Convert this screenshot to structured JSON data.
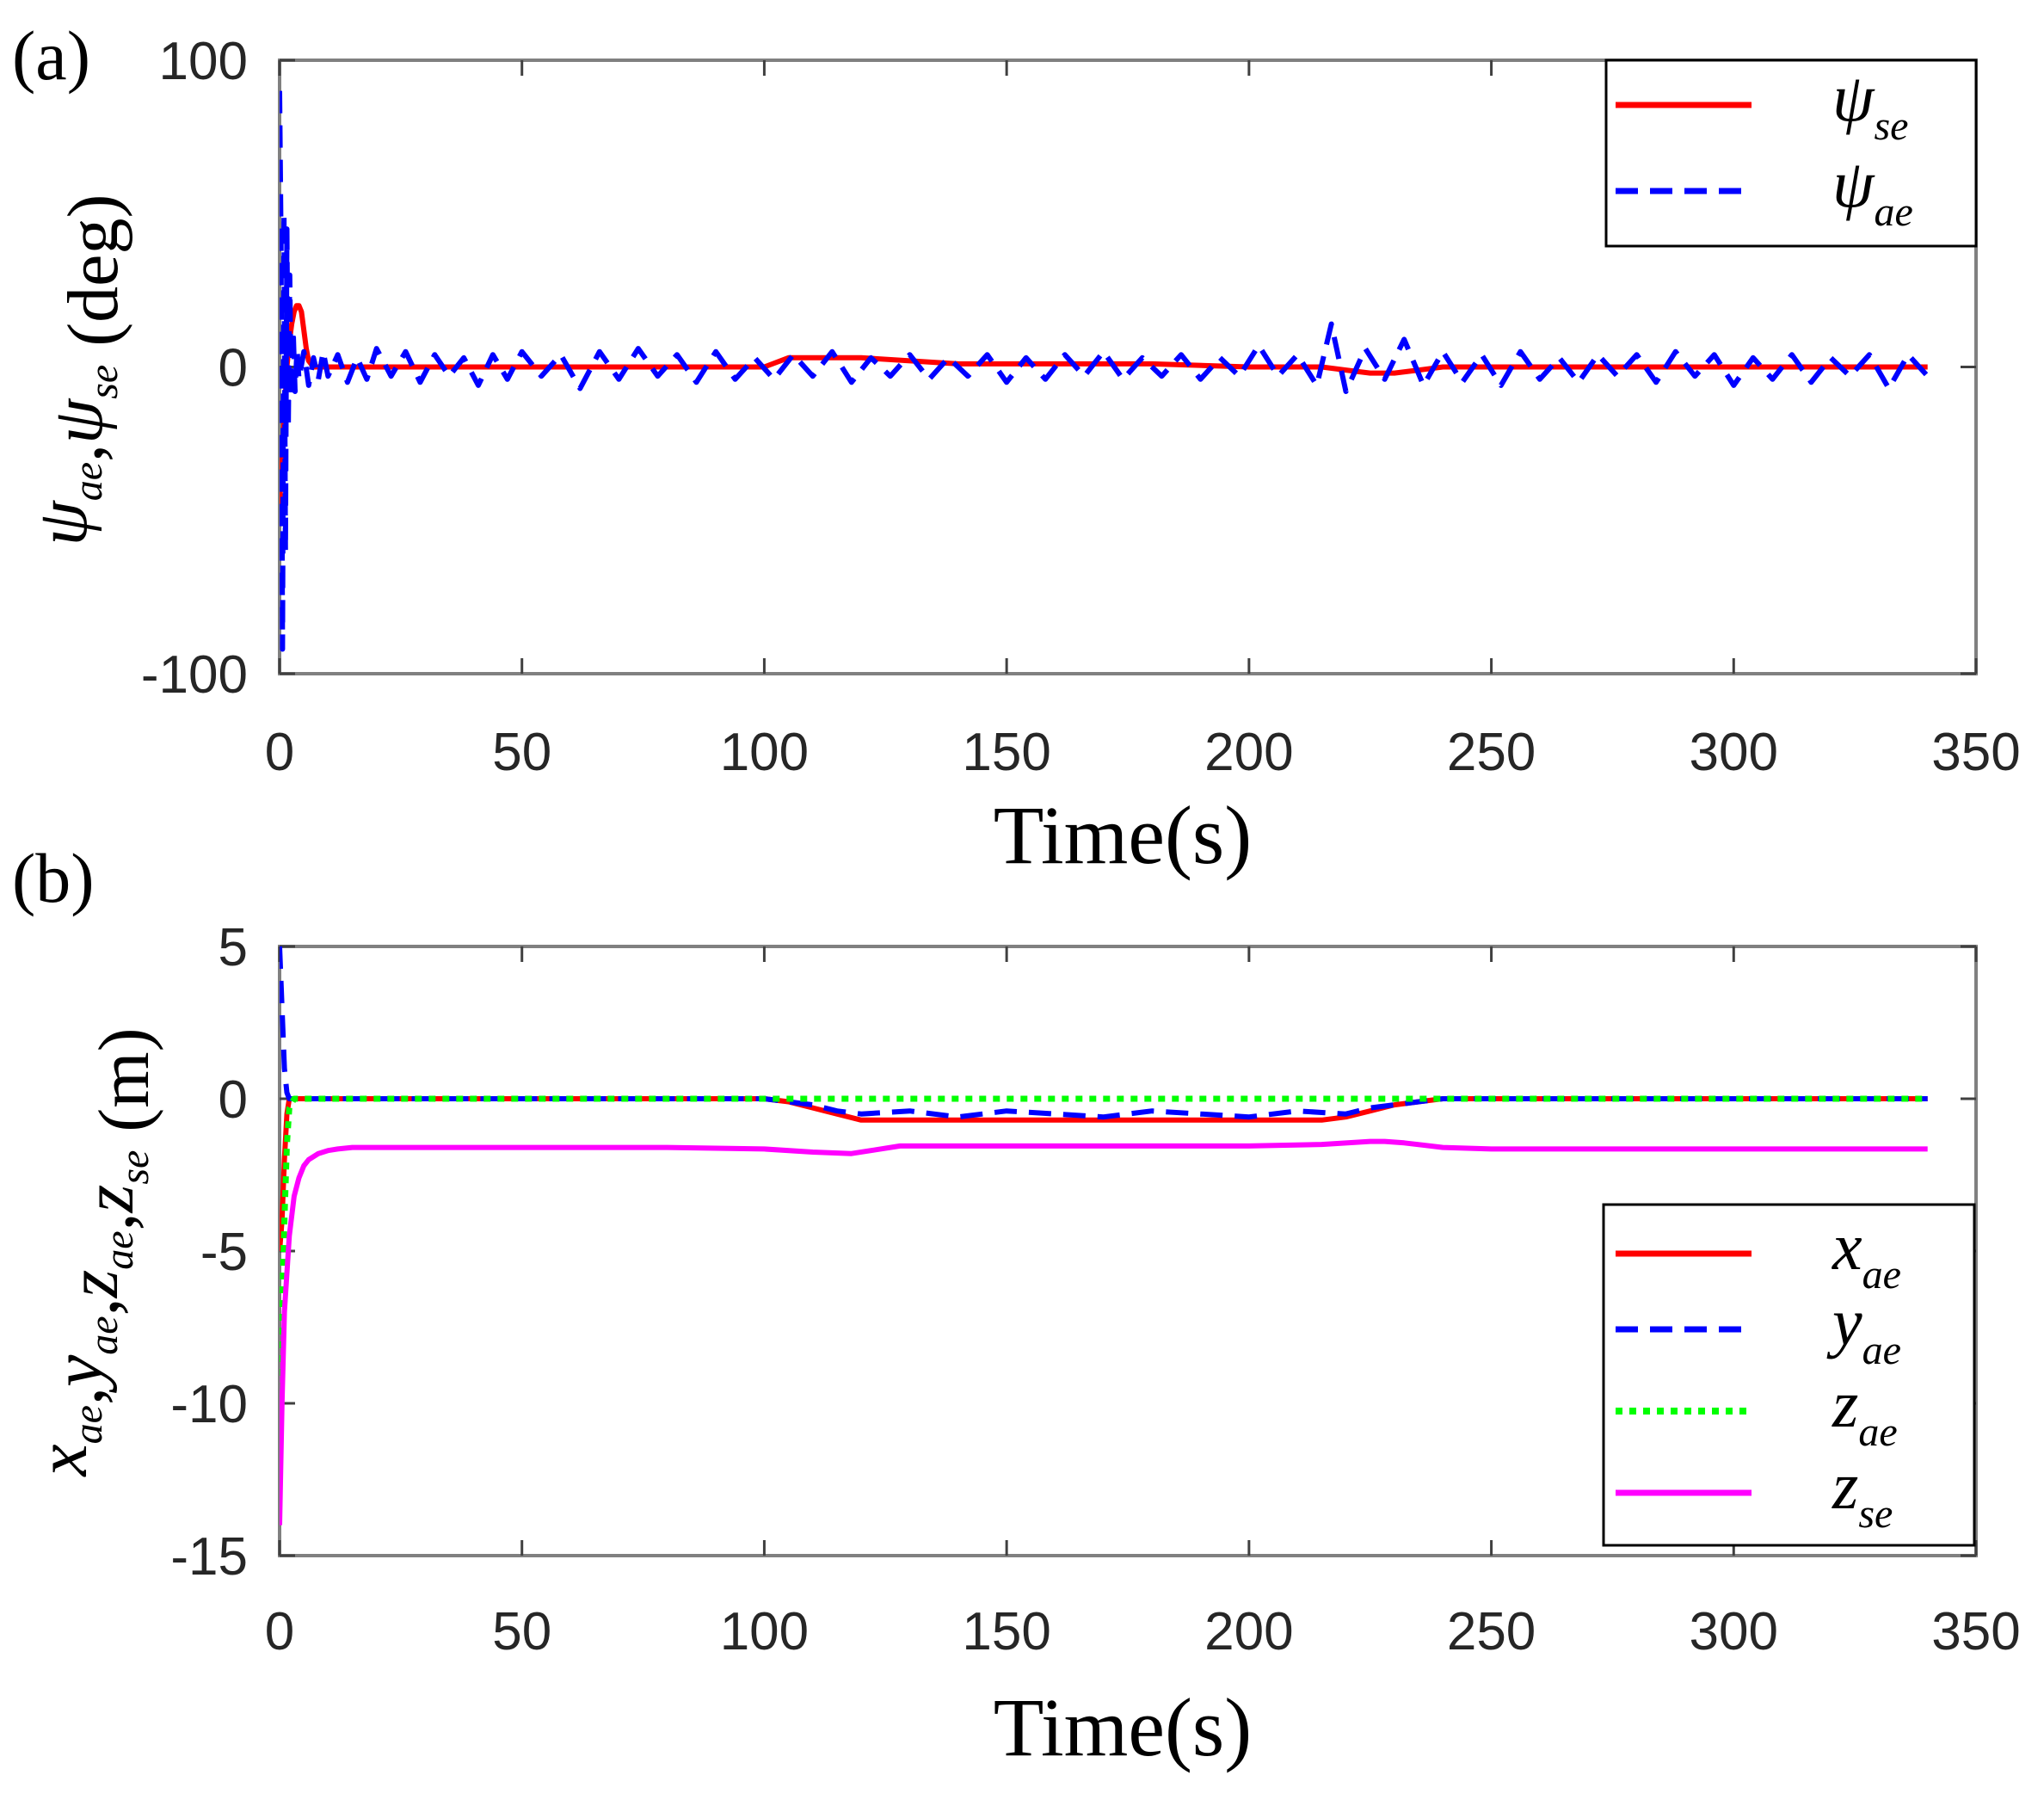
{
  "chart_data": [
    {
      "panel_label": "(a)",
      "type": "line",
      "xlabel": "Time(s)",
      "xlim": [
        0,
        350
      ],
      "ylim": [
        -100,
        100
      ],
      "x_ticks": [
        0,
        50,
        100,
        150,
        200,
        250,
        300,
        350
      ],
      "y_ticks": [
        -100,
        0,
        100
      ],
      "x_tick_labels": [
        "0",
        "50",
        "100",
        "150",
        "200",
        "250",
        "300",
        "350"
      ],
      "y_tick_labels": [
        "-100",
        "0",
        "100"
      ],
      "ylabel": {
        "parts": [
          {
            "sym": "ψ",
            "sub": "ae"
          },
          {
            "sep": ","
          },
          {
            "sym": "ψ",
            "sub": "se"
          },
          {
            "unit": "(deg)"
          }
        ]
      },
      "legend_position": "top-right",
      "series": [
        {
          "name": "ψ_se",
          "sym": "ψ",
          "sub": "se",
          "color": "#ff0000",
          "style": "solid",
          "x": [
            0,
            0.5,
            1,
            1.5,
            2,
            2.5,
            3,
            3.5,
            4,
            4.5,
            5,
            5.5,
            6,
            7,
            8,
            10,
            15,
            20,
            40,
            60,
            80,
            100,
            105,
            110,
            115,
            120,
            140,
            160,
            180,
            200,
            215,
            220,
            225,
            230,
            235,
            240,
            260,
            280,
            300,
            320,
            340
          ],
          "y": [
            -45,
            -30,
            -15,
            0,
            8,
            14,
            18,
            20,
            20,
            18,
            12,
            6,
            2,
            0,
            0,
            0,
            0,
            0,
            0,
            0,
            0,
            0,
            3,
            3,
            3,
            3,
            1,
            1,
            1,
            0,
            0,
            -1,
            -2,
            -2,
            -1,
            0,
            0,
            0,
            0,
            0,
            0
          ]
        },
        {
          "name": "ψ_ae",
          "sym": "ψ",
          "sub": "ae",
          "color": "#0000ff",
          "style": "dashed",
          "x": [
            0,
            0.3,
            0.6,
            0.9,
            1.2,
            1.5,
            1.8,
            2.1,
            2.4,
            2.8,
            3.2,
            3.6,
            4,
            5,
            6,
            7,
            8,
            9,
            10,
            12,
            14,
            16,
            18,
            20,
            23,
            26,
            29,
            32,
            35,
            38,
            41,
            44,
            47,
            50,
            54,
            58,
            62,
            66,
            70,
            74,
            78,
            82,
            86,
            90,
            94,
            98,
            102,
            106,
            110,
            114,
            118,
            122,
            126,
            130,
            134,
            138,
            142,
            146,
            150,
            154,
            158,
            162,
            166,
            170,
            174,
            178,
            182,
            186,
            190,
            194,
            198,
            202,
            206,
            210,
            214,
            217,
            220,
            224,
            228,
            232,
            236,
            240,
            244,
            248,
            252,
            256,
            260,
            264,
            268,
            272,
            276,
            280,
            284,
            288,
            292,
            296,
            300,
            304,
            308,
            312,
            316,
            320,
            324,
            328,
            332,
            336,
            340
          ],
          "y": [
            90,
            40,
            -92,
            50,
            -60,
            45,
            -20,
            30,
            -10,
            12,
            -8,
            6,
            -4,
            5,
            -6,
            3,
            -4,
            5,
            -3,
            4,
            -5,
            3,
            -4,
            6,
            -3,
            5,
            -5,
            4,
            -3,
            3,
            -6,
            4,
            -4,
            5,
            -3,
            4,
            -7,
            5,
            -4,
            6,
            -3,
            4,
            -5,
            5,
            -4,
            3,
            -4,
            4,
            -3,
            5,
            -5,
            3,
            -3,
            4,
            -4,
            3,
            -3,
            4,
            -5,
            3,
            -4,
            4,
            -3,
            5,
            -4,
            3,
            -3,
            4,
            -4,
            3,
            -3,
            7,
            -3,
            4,
            -6,
            14,
            -8,
            6,
            -4,
            9,
            -6,
            5,
            -5,
            4,
            -6,
            5,
            -4,
            3,
            -5,
            4,
            -3,
            4,
            -5,
            5,
            -3,
            4,
            -6,
            3,
            -4,
            4,
            -5,
            3,
            -3,
            4,
            -7,
            4,
            -3
          ]
        }
      ]
    },
    {
      "panel_label": "(b)",
      "type": "line",
      "xlabel": "Time(s)",
      "xlim": [
        0,
        350
      ],
      "ylim": [
        -15,
        5
      ],
      "x_ticks": [
        0,
        50,
        100,
        150,
        200,
        250,
        300,
        350
      ],
      "y_ticks": [
        -15,
        -10,
        -5,
        0,
        5
      ],
      "x_tick_labels": [
        "0",
        "50",
        "100",
        "150",
        "200",
        "250",
        "300",
        "350"
      ],
      "y_tick_labels": [
        "-15",
        "-10",
        "-5",
        "0",
        "5"
      ],
      "ylabel": {
        "parts": [
          {
            "sym": "x",
            "sub": "ae"
          },
          {
            "sep": ","
          },
          {
            "sym": "y",
            "sub": "ae"
          },
          {
            "sep": ","
          },
          {
            "sym": "z",
            "sub": "ae"
          },
          {
            "sep": ","
          },
          {
            "sym": "z",
            "sub": "se"
          },
          {
            "unit": "(m)"
          }
        ]
      },
      "legend_position": "bottom-right",
      "series": [
        {
          "name": "x_ae",
          "sym": "x",
          "sub": "ae",
          "color": "#ff0000",
          "style": "solid",
          "x": [
            0,
            0.5,
            1,
            1.5,
            2,
            3,
            5,
            20,
            60,
            100,
            105,
            110,
            115,
            120,
            140,
            160,
            180,
            200,
            215,
            220,
            225,
            230,
            235,
            240,
            260,
            300,
            340
          ],
          "y": [
            -5,
            -4,
            -2,
            -0.5,
            0,
            0,
            0,
            0,
            0,
            0,
            -0.1,
            -0.3,
            -0.5,
            -0.7,
            -0.7,
            -0.7,
            -0.7,
            -0.7,
            -0.7,
            -0.6,
            -0.4,
            -0.2,
            -0.1,
            0,
            0,
            0,
            0
          ]
        },
        {
          "name": "y_ae",
          "sym": "y",
          "sub": "ae",
          "color": "#0000ff",
          "style": "dashed",
          "x": [
            0,
            0.5,
            1,
            1.5,
            2,
            3,
            5,
            20,
            60,
            100,
            105,
            110,
            115,
            120,
            130,
            140,
            150,
            160,
            170,
            180,
            190,
            200,
            210,
            220,
            225,
            230,
            235,
            240,
            260,
            300,
            340
          ],
          "y": [
            5,
            3,
            1,
            0.2,
            0,
            0,
            0,
            0,
            0,
            0,
            -0.1,
            -0.2,
            -0.4,
            -0.5,
            -0.4,
            -0.6,
            -0.4,
            -0.5,
            -0.6,
            -0.4,
            -0.5,
            -0.6,
            -0.4,
            -0.5,
            -0.3,
            -0.2,
            -0.1,
            0,
            0,
            0,
            0
          ]
        },
        {
          "name": "z_ae",
          "sym": "z",
          "sub": "ae",
          "color": "#00ff00",
          "style": "dotted",
          "x": [
            0,
            0.5,
            1,
            1.5,
            2,
            3,
            5,
            340
          ],
          "y": [
            -10,
            -7,
            -4,
            -1.5,
            -0.3,
            0,
            0,
            0
          ]
        },
        {
          "name": "z_se",
          "sym": "z",
          "sub": "se",
          "color": "#ff00ff",
          "style": "solid",
          "x": [
            0,
            0.5,
            1,
            2,
            3,
            4,
            5,
            6,
            8,
            10,
            12,
            15,
            20,
            40,
            60,
            80,
            100,
            110,
            118,
            122,
            128,
            140,
            160,
            180,
            200,
            215,
            225,
            228,
            232,
            240,
            250,
            300,
            340
          ],
          "y": [
            -14,
            -10,
            -7,
            -4.5,
            -3.2,
            -2.6,
            -2.2,
            -2,
            -1.8,
            -1.7,
            -1.65,
            -1.6,
            -1.6,
            -1.6,
            -1.6,
            -1.6,
            -1.65,
            -1.75,
            -1.8,
            -1.7,
            -1.55,
            -1.55,
            -1.55,
            -1.55,
            -1.55,
            -1.5,
            -1.4,
            -1.4,
            -1.45,
            -1.6,
            -1.65,
            -1.65,
            -1.65
          ]
        }
      ]
    }
  ]
}
